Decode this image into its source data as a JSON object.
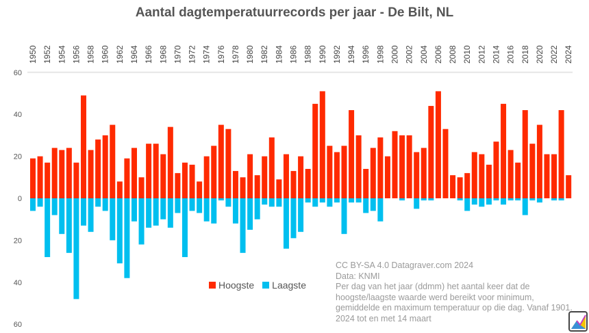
{
  "chart_data": {
    "type": "bar",
    "title": "Aantal dagtemperatuurrecords per jaar - De Bilt, NL",
    "xlabel": "",
    "ylabel": "",
    "ylim": [
      -60,
      60
    ],
    "yticks": [
      60,
      40,
      20,
      0,
      -20,
      -40,
      -60
    ],
    "ytick_labels": [
      "60",
      "40",
      "20",
      "0",
      "20",
      "40",
      "60"
    ],
    "grid": false,
    "legend": "bottom-center",
    "categories": [
      1950,
      1951,
      1952,
      1953,
      1954,
      1955,
      1956,
      1957,
      1958,
      1959,
      1960,
      1961,
      1962,
      1963,
      1964,
      1965,
      1966,
      1967,
      1968,
      1969,
      1970,
      1971,
      1972,
      1973,
      1974,
      1975,
      1976,
      1977,
      1978,
      1979,
      1980,
      1981,
      1982,
      1983,
      1984,
      1985,
      1986,
      1987,
      1988,
      1989,
      1990,
      1991,
      1992,
      1993,
      1994,
      1995,
      1996,
      1997,
      1998,
      1999,
      2000,
      2001,
      2002,
      2003,
      2004,
      2005,
      2006,
      2007,
      2008,
      2009,
      2010,
      2011,
      2012,
      2013,
      2014,
      2015,
      2016,
      2017,
      2018,
      2019,
      2020,
      2021,
      2022,
      2023,
      2024
    ],
    "series": [
      {
        "name": "Hoogste",
        "color": "#ff2a00",
        "values": [
          19,
          20,
          17,
          24,
          23,
          24,
          17,
          49,
          23,
          28,
          30,
          35,
          8,
          19,
          24,
          10,
          26,
          26,
          21,
          34,
          12,
          17,
          16,
          8,
          20,
          25,
          35,
          33,
          13,
          10,
          21,
          11,
          20,
          29,
          9,
          21,
          13,
          20,
          14,
          45,
          51,
          25,
          22,
          25,
          42,
          30,
          14,
          24,
          29,
          20,
          32,
          30,
          30,
          22,
          24,
          44,
          51,
          33,
          11,
          10,
          12,
          22,
          21,
          16,
          27,
          45,
          23,
          17,
          42,
          26,
          35,
          21,
          21,
          42,
          11
        ]
      },
      {
        "name": "Laagste",
        "color": "#00bfef",
        "values": [
          -6,
          -4,
          -28,
          -8,
          -17,
          -26,
          -48,
          -13,
          -16,
          -4,
          -6,
          -20,
          -31,
          -38,
          -11,
          -22,
          -14,
          -13,
          -10,
          -14,
          -7,
          -28,
          -6,
          -7,
          -11,
          -12,
          -1,
          -4,
          -12,
          -26,
          -15,
          -10,
          -3,
          -4,
          -4,
          -24,
          -19,
          -16,
          -2,
          -4,
          -2,
          -4,
          -2,
          -17,
          -2,
          -2,
          -7,
          -6,
          -11,
          0,
          0,
          -1,
          0,
          -5,
          -1,
          -1,
          0,
          0,
          0,
          -1,
          -6,
          -3,
          -4,
          -3,
          -1,
          -3,
          -1,
          -1,
          -8,
          -1,
          -2,
          0,
          -1,
          -1,
          0
        ]
      }
    ]
  },
  "notes": {
    "license": "CC BY-SA 4.0  Datagraver.com 2024",
    "source": "Data: KNMI",
    "desc1": "Per dag van het jaar (ddmm) het aantal keer dat de",
    "desc2": "hoogste/laagste waarde werd bereikt voor minimum,",
    "desc3": "gemiddelde en maximum temperatuur op die dag. Vanaf 1901.",
    "desc4": "2024 tot en met 14 maart"
  },
  "logo_text": "D"
}
